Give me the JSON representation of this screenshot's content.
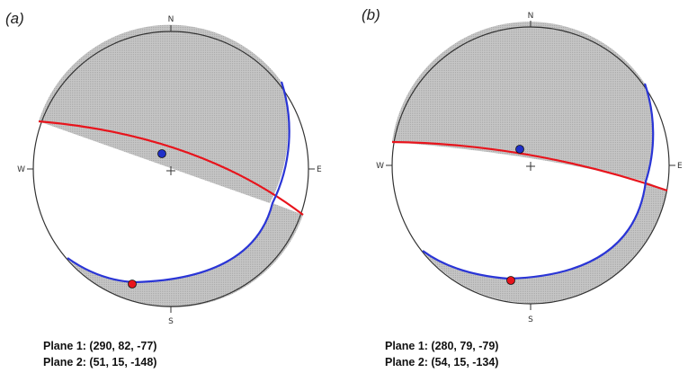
{
  "panels": [
    {
      "label": "(a)",
      "directions": {
        "north": "N",
        "south": "S",
        "east": "E",
        "west": "W"
      },
      "plane1": {
        "label": "Plane 1: (290, 82, -77)",
        "strike": 290,
        "dip": 82,
        "rake": -77
      },
      "plane2": {
        "label": "Plane 2: (51, 15, -148)",
        "strike": 51,
        "dip": 15,
        "rake": -148
      }
    },
    {
      "label": "(b)",
      "directions": {
        "north": "N",
        "south": "S",
        "east": "E",
        "west": "W"
      },
      "plane1": {
        "label": "Plane 1: (280, 79, -79)",
        "strike": 280,
        "dip": 79,
        "rake": -79
      },
      "plane2": {
        "label": "Plane 2: (54, 15, -134)",
        "strike": 54,
        "dip": 15,
        "rake": -134
      }
    }
  ],
  "colors": {
    "compressional": "#c2c2c2",
    "dilatational": "#ffffff",
    "plane1": "#e8141c",
    "plane2": "#2a35d6",
    "outline": "#333333",
    "pole1": "#e8141c",
    "pole2": "#1f2fc8"
  }
}
